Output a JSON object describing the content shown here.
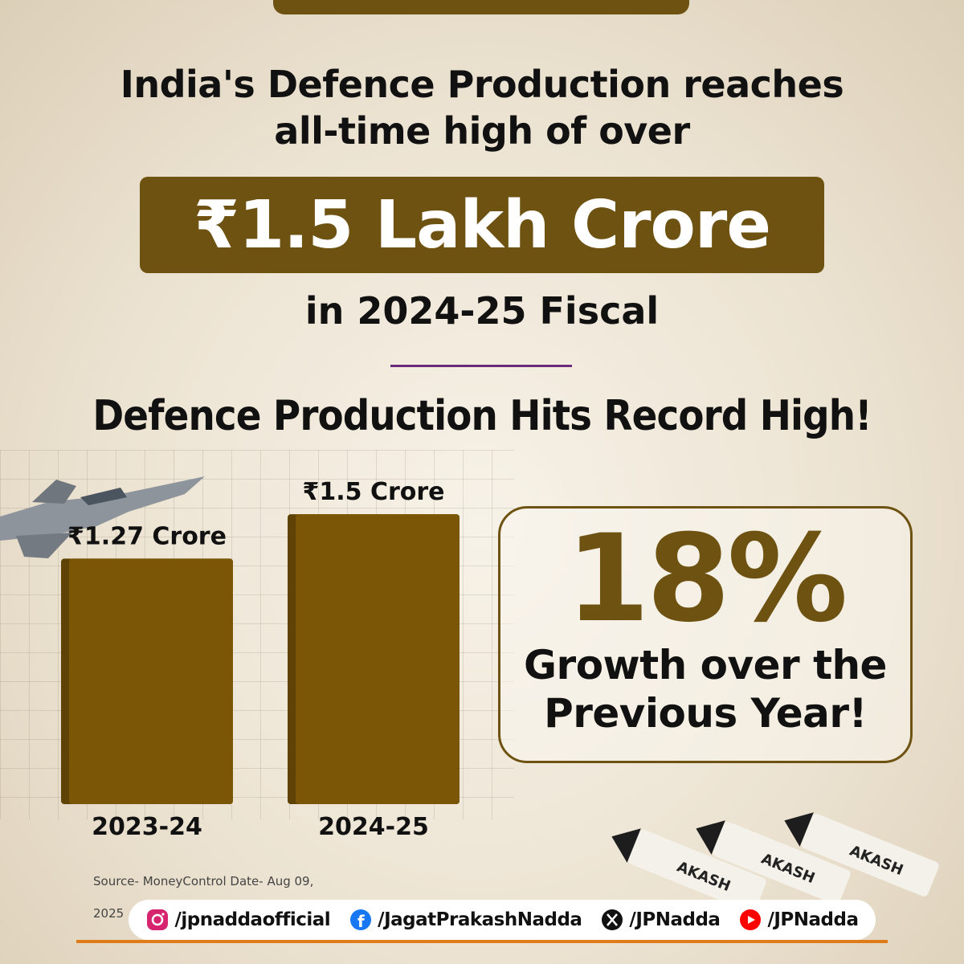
{
  "headline": {
    "line1": "India's Defence Production reaches",
    "line2": "all-time high of over",
    "highlight": "₹1.5 Lakh Crore",
    "line3": "in 2024-25 Fiscal",
    "subtitle": "Defence Production Hits Record High!"
  },
  "chart_data": {
    "type": "bar",
    "categories": [
      "2023-24",
      "2024-25"
    ],
    "values": [
      1.27,
      1.5
    ],
    "data_labels": [
      "₹1.27 Crore",
      "₹1.5 Crore"
    ],
    "title": "Defence Production Hits Record High!",
    "xlabel": "",
    "ylabel": "",
    "ylim": [
      0,
      1.6
    ],
    "grid": false,
    "legend": "none",
    "bar_color": "#7a5606"
  },
  "growth": {
    "percent": "18%",
    "line1": "Growth over the",
    "line2": "Previous Year!"
  },
  "decor": {
    "missile_label": "AKASH"
  },
  "source": {
    "text": "Source- MoneyControl  Date- Aug 09,",
    "year": "2025"
  },
  "social": [
    {
      "icon": "instagram-icon",
      "handle": "/jpnaddaofficial",
      "color": "#d6246e"
    },
    {
      "icon": "facebook-icon",
      "handle": "/JagatPrakashNadda",
      "color": "#1877f2"
    },
    {
      "icon": "x-icon",
      "handle": "/JPNadda",
      "color": "#111111"
    },
    {
      "icon": "youtube-icon",
      "handle": "/JPNadda",
      "color": "#ff0000"
    }
  ],
  "colors": {
    "accent": "#6e5211",
    "divider": "#6a2a7a",
    "bottom_line": "#e07b1a"
  }
}
